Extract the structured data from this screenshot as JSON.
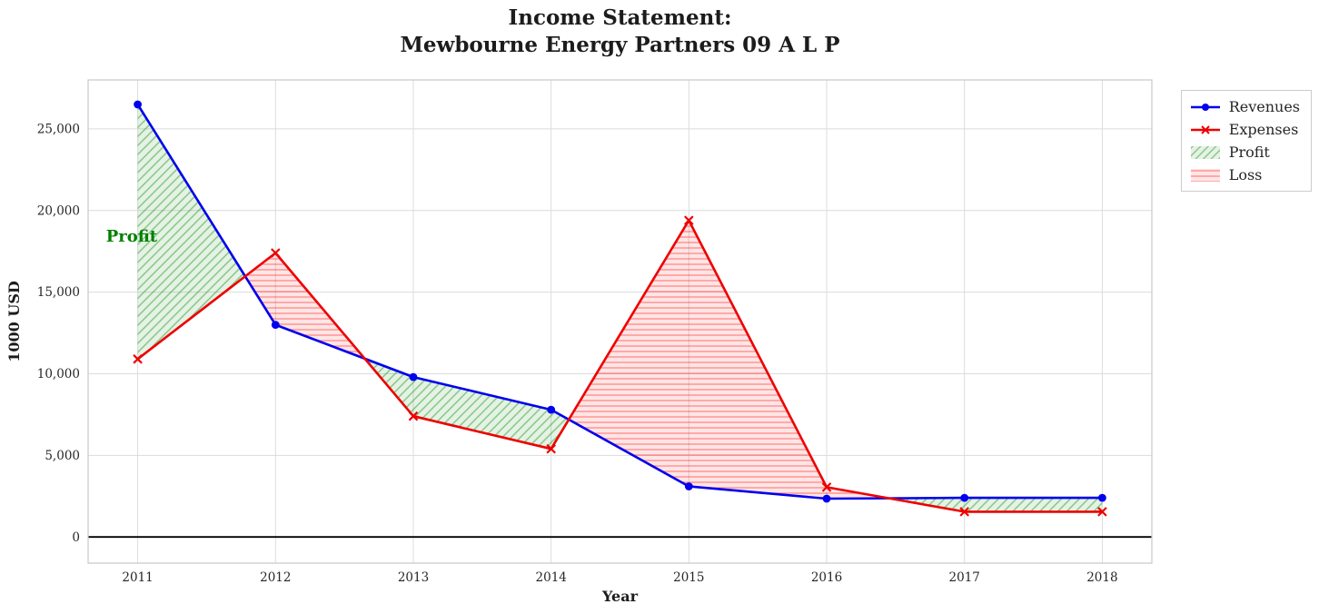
{
  "title": {
    "line1": "Income Statement:",
    "line2": "Mewbourne Energy Partners 09 A L P"
  },
  "chart_data": {
    "type": "line",
    "title": "Income Statement: Mewbourne Energy Partners 09 A L P",
    "xlabel": "Year",
    "ylabel": "1000 USD",
    "x": [
      2011,
      2012,
      2013,
      2014,
      2015,
      2016,
      2017,
      2018
    ],
    "series": [
      {
        "name": "Revenues",
        "color": "#0000ee",
        "marker": "circle",
        "values": [
          26500,
          13000,
          9800,
          7800,
          3100,
          2350,
          2400,
          2400
        ]
      },
      {
        "name": "Expenses",
        "color": "#ee0000",
        "marker": "x",
        "values": [
          10900,
          17400,
          7400,
          5400,
          19400,
          3050,
          1550,
          1550
        ]
      }
    ],
    "fills": [
      {
        "name": "Profit",
        "condition": "revenues_above_expenses",
        "hatch": "diagonal",
        "color": "green"
      },
      {
        "name": "Loss",
        "condition": "expenses_above_revenues",
        "hatch": "horizontal",
        "color": "red"
      }
    ],
    "xlim": [
      2010.64,
      2018.36
    ],
    "ylim": [
      -1600,
      28000
    ],
    "yticks": [
      0,
      5000,
      10000,
      15000,
      20000,
      25000
    ],
    "grid": true,
    "zero_line": true,
    "annotation": {
      "text": "Profit",
      "x": 2010.77,
      "y": 18100,
      "color": "#008000"
    },
    "legend": {
      "position": "outside upper right",
      "items": [
        {
          "id": "revenues",
          "label": "Revenues",
          "kind": "line-circle",
          "color": "#0000ee"
        },
        {
          "id": "expenses",
          "label": "Expenses",
          "kind": "line-x",
          "color": "#ee0000"
        },
        {
          "id": "profit",
          "label": "Profit",
          "kind": "patch",
          "hatch": "diagonal",
          "bg": "rgba(0,128,0,0.10)",
          "line": "rgba(0,140,0,0.45)"
        },
        {
          "id": "loss",
          "label": "Loss",
          "kind": "patch",
          "hatch": "horizontal",
          "bg": "rgba(255,0,0,0.10)",
          "line": "rgba(255,0,0,0.40)"
        }
      ]
    }
  }
}
